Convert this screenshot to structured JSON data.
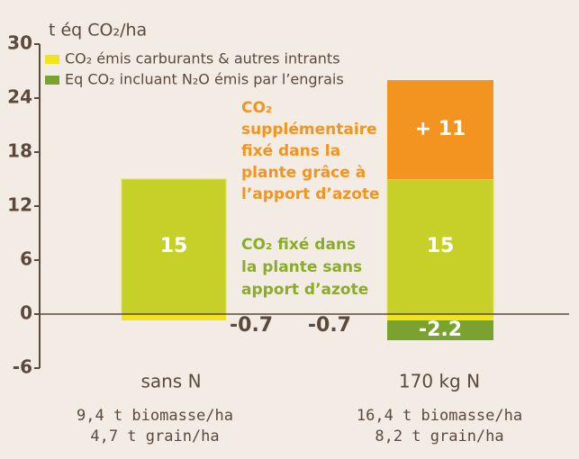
{
  "chart_data": {
    "type": "bar",
    "y_label": "t éq CO₂/ha",
    "categories": [
      "sans N",
      "170 kg N"
    ],
    "series": [
      {
        "name": "CO₂ émis carburants & autres intrants",
        "color": "#f2e41c",
        "values": [
          -0.7,
          -0.7
        ]
      },
      {
        "name": "Eq CO₂ incluant N₂O émis par l’engrais",
        "color": "#7aa22e",
        "values": [
          null,
          -2.2
        ]
      }
    ],
    "fixed": {
      "color": "#c6d028",
      "values": [
        15,
        15
      ]
    },
    "added": {
      "color": "#f39420",
      "values": [
        null,
        11
      ],
      "value_labels": [
        null,
        "+ 11"
      ]
    },
    "ylim": [
      -6,
      30
    ],
    "yticks": [
      -6,
      0,
      6,
      12,
      18,
      24,
      30
    ],
    "annotations": {
      "orange": [
        "CO₂",
        "supplémentaire",
        "fixé dans la",
        "plante grâce à",
        "l’apport d’azote"
      ],
      "green": [
        "CO₂ fixé dans",
        "la plante sans",
        "apport d’azote"
      ]
    },
    "notes": [
      [
        "9,4 t biomasse/ha",
        "4,7 t grain/ha"
      ],
      [
        "16,4 t biomasse/ha",
        "8,2 t grain/ha"
      ]
    ]
  }
}
